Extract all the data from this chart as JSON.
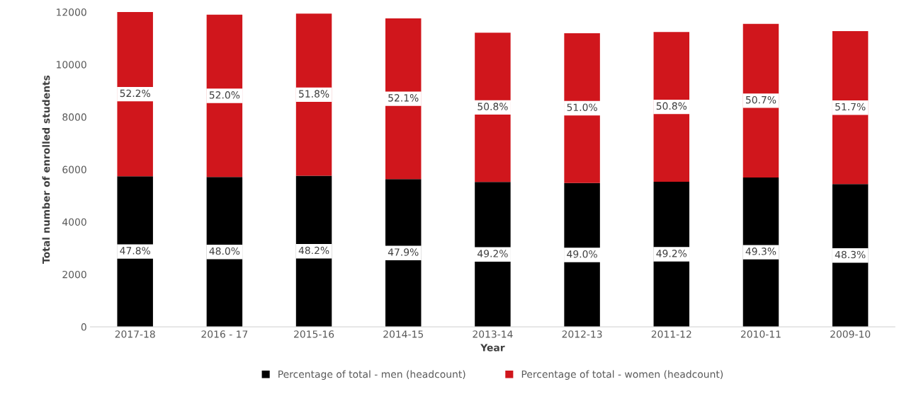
{
  "chart_data": {
    "type": "bar",
    "stacked": true,
    "xlabel": "Year",
    "ylabel": "Total number of enrolled students",
    "categories": [
      "2017-18",
      "2016 - 17",
      "2015-16",
      "2014-15",
      "2013-14",
      "2012-13",
      "2011-12",
      "2010-11",
      "2009-10"
    ],
    "series": [
      {
        "name": "Percentage of total - men (headcount)",
        "color": "#000000",
        "values": [
          5740,
          5710,
          5760,
          5630,
          5520,
          5480,
          5530,
          5690,
          5440
        ]
      },
      {
        "name": "Percentage of total - women (headcount)",
        "color": "#d0161c",
        "values": [
          6260,
          6190,
          6180,
          6130,
          5690,
          5710,
          5710,
          5860,
          5830
        ]
      }
    ],
    "annotations": [
      "47.8%",
      "48.0%",
      "48.2%",
      "47.9%",
      "49.2%",
      "49.0%",
      "49.2%",
      "49.3%",
      "48.3%",
      "52.2%",
      "52.0%",
      "51.8%",
      "52.1%",
      "50.8%",
      "51.0%",
      "50.8%",
      "50.7%",
      "51.7%"
    ],
    "ylim": [
      0,
      12000
    ],
    "yticks": [
      0,
      2000,
      4000,
      6000,
      8000,
      10000,
      12000
    ],
    "grid": false,
    "legend": "bottom"
  }
}
